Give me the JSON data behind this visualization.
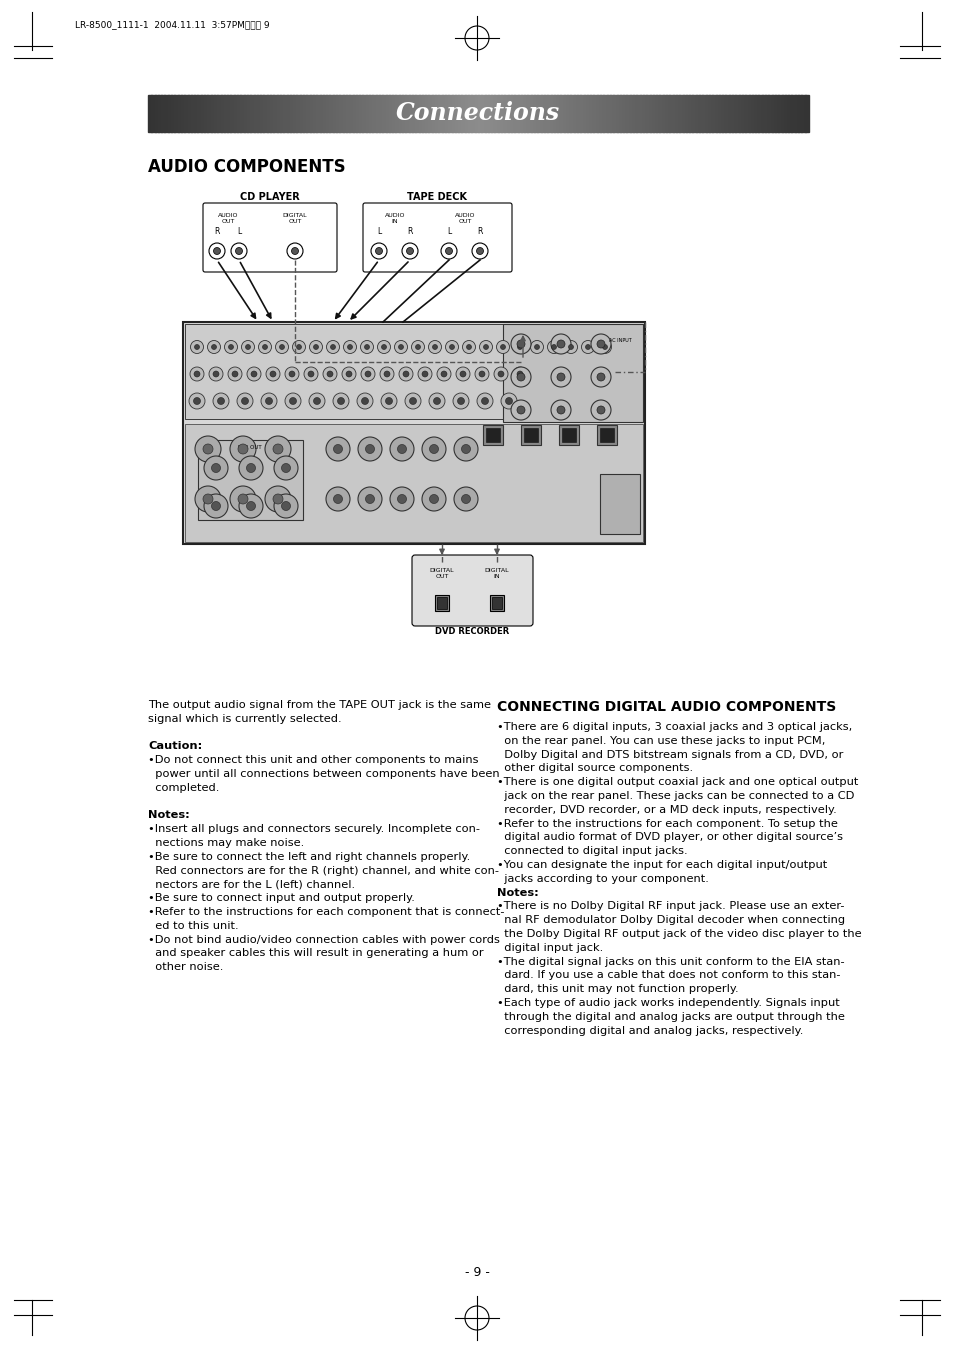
{
  "page_bg": "#ffffff",
  "header_text": "Connections",
  "header_text_color": "#ffffff",
  "section1_title": "AUDIO COMPONENTS",
  "section2_title": "CONNECTING DIGITAL AUDIO COMPONENTS",
  "left_body_lines": [
    [
      "normal",
      "The output audio signal from the TAPE OUT jack is the same"
    ],
    [
      "normal",
      "signal which is currently selected."
    ],
    [
      "normal",
      ""
    ],
    [
      "normal",
      "Caution:"
    ],
    [
      "normal",
      "•Do not connect this unit and other components to mains"
    ],
    [
      "normal",
      "  power until all connections between components have been"
    ],
    [
      "normal",
      "  completed."
    ],
    [
      "normal",
      ""
    ],
    [
      "normal",
      "Notes:"
    ],
    [
      "normal",
      "•Insert all plugs and connectors securely. Incomplete con-"
    ],
    [
      "normal",
      "  nections may make noise."
    ],
    [
      "normal",
      "•Be sure to connect the left and right channels properly."
    ],
    [
      "normal",
      "  Red connectors are for the R (right) channel, and white con-"
    ],
    [
      "normal",
      "  nectors are for the L (left) channel."
    ],
    [
      "normal",
      "•Be sure to connect input and output properly."
    ],
    [
      "normal",
      "•Refer to the instructions for each component that is connect-"
    ],
    [
      "normal",
      "  ed to this unit."
    ],
    [
      "normal",
      "•Do not bind audio/video connection cables with power cords"
    ],
    [
      "normal",
      "  and speaker cables this will result in generating a hum or"
    ],
    [
      "normal",
      "  other noise."
    ]
  ],
  "right_body_lines": [
    [
      "normal",
      "•There are 6 digital inputs, 3 coaxial jacks and 3 optical jacks,"
    ],
    [
      "normal",
      "  on the rear panel. You can use these jacks to input PCM,"
    ],
    [
      "normal",
      "  Dolby Digital and DTS bitstream signals from a CD, DVD, or"
    ],
    [
      "normal",
      "  other digital source components."
    ],
    [
      "normal",
      "•There is one digital output coaxial jack and one optical output"
    ],
    [
      "normal",
      "  jack on the rear panel. These jacks can be connected to a CD"
    ],
    [
      "normal",
      "  recorder, DVD recorder, or a MD deck inputs, respectively."
    ],
    [
      "normal",
      "•Refer to the instructions for each component. To setup the"
    ],
    [
      "normal",
      "  digital audio format of DVD player, or other digital source’s"
    ],
    [
      "normal",
      "  connected to digital input jacks."
    ],
    [
      "normal",
      "•You can designate the input for each digital input/output"
    ],
    [
      "normal",
      "  jacks according to your component."
    ],
    [
      "normal",
      "Notes:"
    ],
    [
      "normal",
      "•There is no Dolby Digital RF input jack. Please use an exter-"
    ],
    [
      "normal",
      "  nal RF demodulator Dolby Digital decoder when connecting"
    ],
    [
      "normal",
      "  the Dolby Digital RF output jack of the video disc player to the"
    ],
    [
      "normal",
      "  digital input jack."
    ],
    [
      "normal",
      "•The digital signal jacks on this unit conform to the EIA stan-"
    ],
    [
      "normal",
      "  dard. If you use a cable that does not conform to this stan-"
    ],
    [
      "normal",
      "  dard, this unit may not function properly."
    ],
    [
      "normal",
      "•Each type of audio jack works independently. Signals input"
    ],
    [
      "normal",
      "  through the digital and analog jacks are output through the"
    ],
    [
      "normal",
      "  corresponding digital and analog jacks, respectively."
    ]
  ],
  "page_number": "- 9 -",
  "print_info": "LR-8500_1111-1  2004.11.11  3:57PMページ 9"
}
